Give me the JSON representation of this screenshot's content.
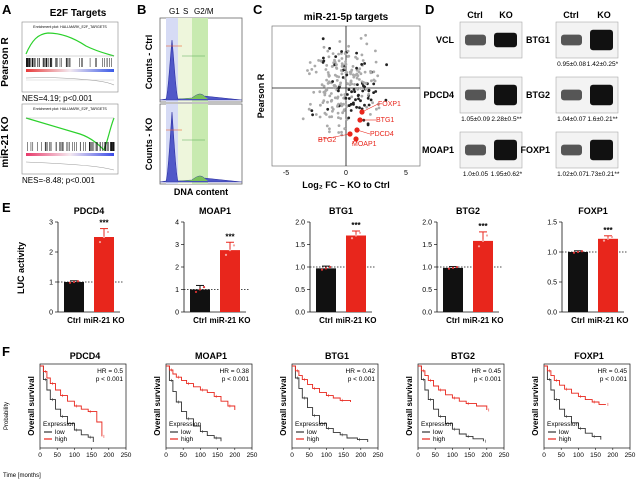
{
  "panels": {
    "A": {
      "letter": "A",
      "title": "E2F Targets",
      "row_labels": [
        "Pearson R",
        "miR-21 KO"
      ],
      "plot_titles": [
        "Enrichment plot: HALLMARK_E2F_TARGETS",
        "Enrichment plot: HALLMARK_E2F_TARGETS"
      ],
      "stats": [
        "NES=4.19; p<0.001",
        "NES=-8.48; p<0.001"
      ]
    },
    "B": {
      "letter": "B",
      "phase_labels": [
        "G1",
        "S",
        "G2/M"
      ],
      "row_labels": [
        "Counts - Ctrl",
        "Counts - KO"
      ],
      "xlabel": "DNA content"
    },
    "C": {
      "letter": "C",
      "title": "miR-21-5p targets",
      "ylabel": "Pearson R",
      "xlabel": "Log₂ FC – KO to Ctrl",
      "xticks": [
        "-5",
        "0",
        "5"
      ],
      "highlighted": [
        "FOXP1",
        "BTG1",
        "PDCD4",
        "BTG2",
        "MOAP1"
      ]
    },
    "D": {
      "letter": "D",
      "col_headers": [
        "Ctrl",
        "KO"
      ],
      "left_blots": [
        {
          "protein": "VCL",
          "ctrl": "",
          "ko": ""
        },
        {
          "protein": "PDCD4",
          "ctrl": "1.05±0.09",
          "ko": "2.28±0.5**"
        },
        {
          "protein": "MOAP1",
          "ctrl": "1.0±0.05",
          "ko": "1.95±0.62*"
        }
      ],
      "right_blots": [
        {
          "protein": "BTG1",
          "ctrl": "0.95±0.08",
          "ko": "1.42±0.25*"
        },
        {
          "protein": "BTG2",
          "ctrl": "1.04±0.07",
          "ko": "1.6±0.21**"
        },
        {
          "protein": "FOXP1",
          "ctrl": "1.02±0.07",
          "ko": "1.73±0.21**"
        }
      ]
    },
    "E": {
      "letter": "E",
      "ylabel": "LUC activity",
      "colors": {
        "ctrl": "#111111",
        "ko": "#e8261c"
      }
    },
    "F": {
      "letter": "F",
      "ylabel": "Overall survival",
      "side_label": "Probability",
      "xlabel": "Time [months]",
      "legend_title": "Expression",
      "legend_items": [
        "low",
        "high"
      ],
      "colors": {
        "low": "#333333",
        "high": "#e8261c"
      }
    }
  },
  "chart_data": [
    {
      "type": "bar",
      "panel": "E",
      "title": "PDCD4",
      "categories": [
        "Ctrl",
        "miR-21 KO"
      ],
      "values": [
        1.0,
        2.5
      ],
      "errors": [
        0.04,
        0.28
      ],
      "ylim": [
        0,
        3
      ],
      "yticks": [
        "0",
        "1",
        "2",
        "3"
      ],
      "significance": "***"
    },
    {
      "type": "bar",
      "panel": "E",
      "title": "MOAP1",
      "categories": [
        "Ctrl",
        "miR-21 KO"
      ],
      "values": [
        1.0,
        2.75
      ],
      "errors": [
        0.18,
        0.35
      ],
      "ylim": [
        0,
        4
      ],
      "yticks": [
        "0",
        "1",
        "2",
        "3",
        "4"
      ],
      "significance": "***"
    },
    {
      "type": "bar",
      "panel": "E",
      "title": "BTG1",
      "categories": [
        "Ctrl",
        "miR-21 KO"
      ],
      "values": [
        0.97,
        1.7
      ],
      "errors": [
        0.05,
        0.1
      ],
      "ylim": [
        0,
        2
      ],
      "yticks": [
        "0.0",
        "0.5",
        "1.0",
        "1.5",
        "2.0"
      ],
      "significance": "***"
    },
    {
      "type": "bar",
      "panel": "E",
      "title": "BTG2",
      "categories": [
        "Ctrl",
        "miR-21 KO"
      ],
      "values": [
        0.98,
        1.58
      ],
      "errors": [
        0.03,
        0.2
      ],
      "ylim": [
        0,
        2
      ],
      "yticks": [
        "0.0",
        "0.5",
        "1.0",
        "1.5",
        "2.0"
      ],
      "significance": "***"
    },
    {
      "type": "bar",
      "panel": "E",
      "title": "FOXP1",
      "categories": [
        "Ctrl",
        "miR-21 KO"
      ],
      "values": [
        1.0,
        1.22
      ],
      "errors": [
        0.02,
        0.05
      ],
      "ylim": [
        0,
        1.5
      ],
      "yticks": [
        "0.0",
        "0.5",
        "1.0",
        "1.5"
      ],
      "significance": "***"
    },
    {
      "type": "line",
      "panel": "F",
      "title": "PDCD4",
      "hr": "HR = 0.5",
      "p": "p < 0.001",
      "xlim": [
        0,
        250
      ],
      "xticks": [
        "0",
        "50",
        "100",
        "150",
        "200",
        "250"
      ],
      "series": [
        {
          "name": "low",
          "x": [
            0,
            10,
            20,
            30,
            45,
            60,
            80,
            100,
            120,
            140,
            155
          ],
          "y": [
            1,
            0.83,
            0.7,
            0.58,
            0.46,
            0.37,
            0.28,
            0.2,
            0.14,
            0.11,
            0.05
          ]
        },
        {
          "name": "high",
          "x": [
            0,
            10,
            20,
            30,
            45,
            60,
            80,
            100,
            120,
            140,
            165,
            180
          ],
          "y": [
            1,
            0.93,
            0.85,
            0.78,
            0.7,
            0.63,
            0.56,
            0.5,
            0.46,
            0.43,
            0.3,
            0.12
          ]
        }
      ]
    },
    {
      "type": "line",
      "panel": "F",
      "title": "MOAP1",
      "hr": "HR = 0.38",
      "p": "p < 0.001",
      "xlim": [
        0,
        250
      ],
      "xticks": [
        "0",
        "50",
        "100",
        "150",
        "200",
        "250"
      ],
      "series": [
        {
          "name": "low",
          "x": [
            0,
            10,
            20,
            30,
            45,
            60,
            80,
            100,
            120,
            140,
            160
          ],
          "y": [
            1,
            0.82,
            0.68,
            0.55,
            0.43,
            0.34,
            0.25,
            0.18,
            0.13,
            0.1,
            0.06
          ]
        },
        {
          "name": "high",
          "x": [
            0,
            10,
            20,
            30,
            45,
            60,
            80,
            100,
            120,
            140,
            160,
            180,
            200
          ],
          "y": [
            1,
            0.95,
            0.9,
            0.86,
            0.82,
            0.78,
            0.74,
            0.7,
            0.67,
            0.62,
            0.56,
            0.5,
            0.45
          ]
        }
      ]
    },
    {
      "type": "line",
      "panel": "F",
      "title": "BTG1",
      "hr": "HR = 0.42",
      "p": "p < 0.001",
      "xlim": [
        0,
        250
      ],
      "xticks": [
        "0",
        "50",
        "100",
        "150",
        "200",
        "250"
      ],
      "series": [
        {
          "name": "low",
          "x": [
            0,
            10,
            20,
            30,
            45,
            60,
            80,
            100,
            120,
            140,
            160,
            190,
            220
          ],
          "y": [
            1,
            0.85,
            0.72,
            0.6,
            0.48,
            0.38,
            0.28,
            0.22,
            0.17,
            0.14,
            0.1,
            0.08,
            0.05
          ]
        },
        {
          "name": "high",
          "x": [
            0,
            10,
            20,
            30,
            45,
            60,
            80,
            100,
            120,
            140,
            170
          ],
          "y": [
            1,
            0.94,
            0.88,
            0.83,
            0.77,
            0.72,
            0.67,
            0.63,
            0.6,
            0.57,
            0.55
          ]
        }
      ]
    },
    {
      "type": "line",
      "panel": "F",
      "title": "BTG2",
      "hr": "HR = 0.45",
      "p": "p < 0.001",
      "xlim": [
        0,
        250
      ],
      "xticks": [
        "0",
        "50",
        "100",
        "150",
        "200",
        "250"
      ],
      "series": [
        {
          "name": "low",
          "x": [
            0,
            10,
            20,
            30,
            45,
            60,
            80,
            100,
            120,
            140,
            160,
            190
          ],
          "y": [
            1,
            0.83,
            0.7,
            0.58,
            0.46,
            0.37,
            0.28,
            0.21,
            0.15,
            0.12,
            0.09,
            0.06
          ]
        },
        {
          "name": "high",
          "x": [
            0,
            10,
            20,
            30,
            45,
            60,
            80,
            100,
            120,
            140,
            170,
            200
          ],
          "y": [
            1,
            0.94,
            0.88,
            0.82,
            0.75,
            0.7,
            0.64,
            0.6,
            0.56,
            0.53,
            0.5,
            0.45
          ]
        }
      ]
    },
    {
      "type": "line",
      "panel": "F",
      "title": "FOXP1",
      "hr": "HR = 0.45",
      "p": "p < 0.001",
      "xlim": [
        0,
        250
      ],
      "xticks": [
        "0",
        "50",
        "100",
        "150",
        "200",
        "250"
      ],
      "series": [
        {
          "name": "low",
          "x": [
            0,
            10,
            20,
            30,
            45,
            60,
            80,
            100,
            120,
            140,
            165
          ],
          "y": [
            1,
            0.83,
            0.7,
            0.58,
            0.46,
            0.37,
            0.29,
            0.22,
            0.16,
            0.12,
            0.08
          ]
        },
        {
          "name": "high",
          "x": [
            0,
            10,
            20,
            30,
            45,
            60,
            80,
            100,
            120,
            140,
            160,
            180
          ],
          "y": [
            1,
            0.94,
            0.88,
            0.82,
            0.76,
            0.71,
            0.66,
            0.62,
            0.58,
            0.55,
            0.52,
            0.52
          ]
        }
      ]
    }
  ]
}
